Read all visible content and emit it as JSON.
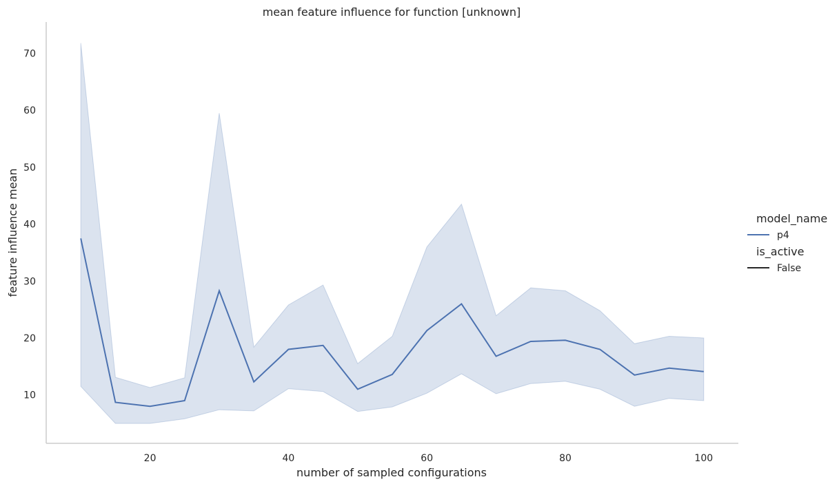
{
  "chart_data": {
    "type": "line",
    "title": "mean feature influence for function [unknown]",
    "xlabel": "number of sampled configurations",
    "ylabel": "feature influence mean",
    "xlim": [
      5,
      105
    ],
    "ylim": [
      1.5,
      75.5
    ],
    "xticks": [
      20,
      40,
      60,
      80,
      100
    ],
    "yticks": [
      10,
      20,
      30,
      40,
      50,
      60,
      70
    ],
    "grid": false,
    "legend_position": "right",
    "legend": {
      "hue_title": "model_name",
      "hue_entries": [
        {
          "label": "p4",
          "color": "#4c72b0"
        }
      ],
      "style_title": "is_active",
      "style_entries": [
        {
          "label": "False",
          "color": "#262626"
        }
      ]
    },
    "series": [
      {
        "name": "p4",
        "color": "#4c72b0",
        "x": [
          10,
          15,
          20,
          25,
          30,
          35,
          40,
          45,
          50,
          55,
          60,
          65,
          70,
          75,
          80,
          85,
          90,
          95,
          100
        ],
        "y": [
          37.5,
          8.7,
          8.0,
          9.0,
          28.3,
          12.3,
          18.0,
          18.7,
          11.0,
          13.6,
          21.3,
          26.0,
          16.8,
          19.4,
          19.6,
          18.0,
          13.5,
          14.7,
          14.1
        ],
        "ci_lower": [
          11.5,
          5.0,
          5.0,
          5.8,
          7.4,
          7.2,
          11.1,
          10.6,
          7.1,
          7.9,
          10.3,
          13.7,
          10.2,
          12.0,
          12.4,
          11.0,
          8.0,
          9.4,
          9.0
        ],
        "ci_upper": [
          71.8,
          13.1,
          11.3,
          13.0,
          59.5,
          18.4,
          25.8,
          29.3,
          15.5,
          20.3,
          36.0,
          43.5,
          23.9,
          28.8,
          28.3,
          24.8,
          19.0,
          20.3,
          20.0
        ]
      }
    ]
  }
}
